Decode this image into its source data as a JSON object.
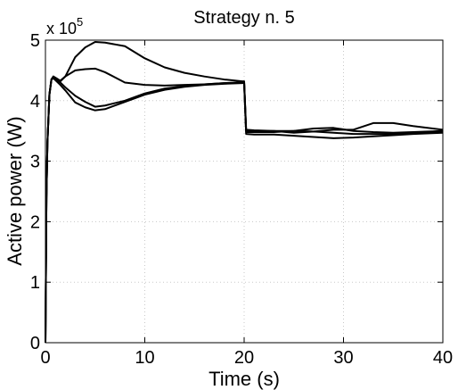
{
  "chart_data": {
    "type": "line",
    "title": "Strategy n. 5",
    "xlabel": "Time (s)",
    "ylabel": "Active power (W)",
    "xlim": [
      0,
      40
    ],
    "ylim": [
      0,
      500000
    ],
    "xticks": [
      0,
      10,
      20,
      30,
      40
    ],
    "yticks": [
      0,
      100000,
      200000,
      300000,
      400000,
      500000
    ],
    "ytick_labels": [
      "0",
      "1",
      "2",
      "3",
      "4",
      "5"
    ],
    "y_exponent_base": "x 10",
    "y_exponent_power": "5",
    "grid": true,
    "line_color": "#000000",
    "series": [
      {
        "x": [
          0,
          0.1,
          0.2,
          0.4,
          0.6,
          0.8,
          1.0,
          1.5,
          2,
          3,
          4,
          5,
          6,
          8,
          10,
          12,
          14,
          16,
          18,
          19.8,
          20,
          20.2,
          21,
          23,
          25,
          27,
          29,
          31,
          33,
          35,
          37,
          40
        ],
        "y": [
          0,
          240000,
          330000,
          410000,
          435000,
          440000,
          438000,
          433000,
          440000,
          472000,
          488000,
          497000,
          496000,
          490000,
          470000,
          455000,
          446000,
          440000,
          435000,
          432000,
          432000,
          352000,
          351000,
          350000,
          347000,
          349000,
          352000,
          352000,
          363000,
          363000,
          358000,
          352000
        ]
      },
      {
        "x": [
          0,
          0.1,
          0.2,
          0.4,
          0.6,
          0.8,
          1.0,
          1.5,
          2,
          3,
          4,
          5,
          6,
          8,
          10,
          12,
          14,
          16,
          18,
          19.8,
          20,
          20.2,
          21,
          23,
          25,
          27,
          29,
          31,
          33,
          35,
          37,
          40
        ],
        "y": [
          0,
          240000,
          330000,
          410000,
          435000,
          440000,
          437000,
          432000,
          440000,
          450000,
          452000,
          453000,
          447000,
          430000,
          426000,
          425000,
          426000,
          427000,
          429000,
          430000,
          430000,
          348000,
          348000,
          348000,
          350000,
          354000,
          355000,
          350000,
          348000,
          347000,
          348000,
          350000
        ]
      },
      {
        "x": [
          0,
          0.1,
          0.2,
          0.4,
          0.6,
          0.8,
          1.0,
          1.5,
          2,
          3,
          4,
          5,
          6,
          8,
          10,
          12,
          14,
          16,
          18,
          19.8,
          20,
          20.2,
          21,
          23,
          25,
          27,
          29,
          31,
          33,
          35,
          37,
          40
        ],
        "y": [
          0,
          240000,
          330000,
          410000,
          435000,
          438000,
          436000,
          430000,
          422000,
          408000,
          398000,
          390000,
          392000,
          400000,
          412000,
          420000,
          424000,
          427000,
          429000,
          430000,
          430000,
          345000,
          344000,
          344000,
          342000,
          340000,
          338000,
          339000,
          341000,
          343000,
          345000,
          347000
        ]
      },
      {
        "x": [
          0,
          0.1,
          0.2,
          0.4,
          0.6,
          0.8,
          1.0,
          1.5,
          2,
          3,
          4,
          5,
          6,
          8,
          10,
          12,
          14,
          16,
          18,
          19.8,
          20,
          20.2,
          21,
          23,
          25,
          27,
          29,
          31,
          33,
          35,
          37,
          40
        ],
        "y": [
          0,
          240000,
          330000,
          410000,
          435000,
          437000,
          434000,
          426000,
          417000,
          397000,
          389000,
          384000,
          386000,
          398000,
          410000,
          418000,
          423000,
          426000,
          428000,
          429000,
          429000,
          350000,
          349000,
          350000,
          350000,
          349000,
          347000,
          345000,
          345000,
          345000,
          346000,
          348000
        ]
      }
    ]
  }
}
